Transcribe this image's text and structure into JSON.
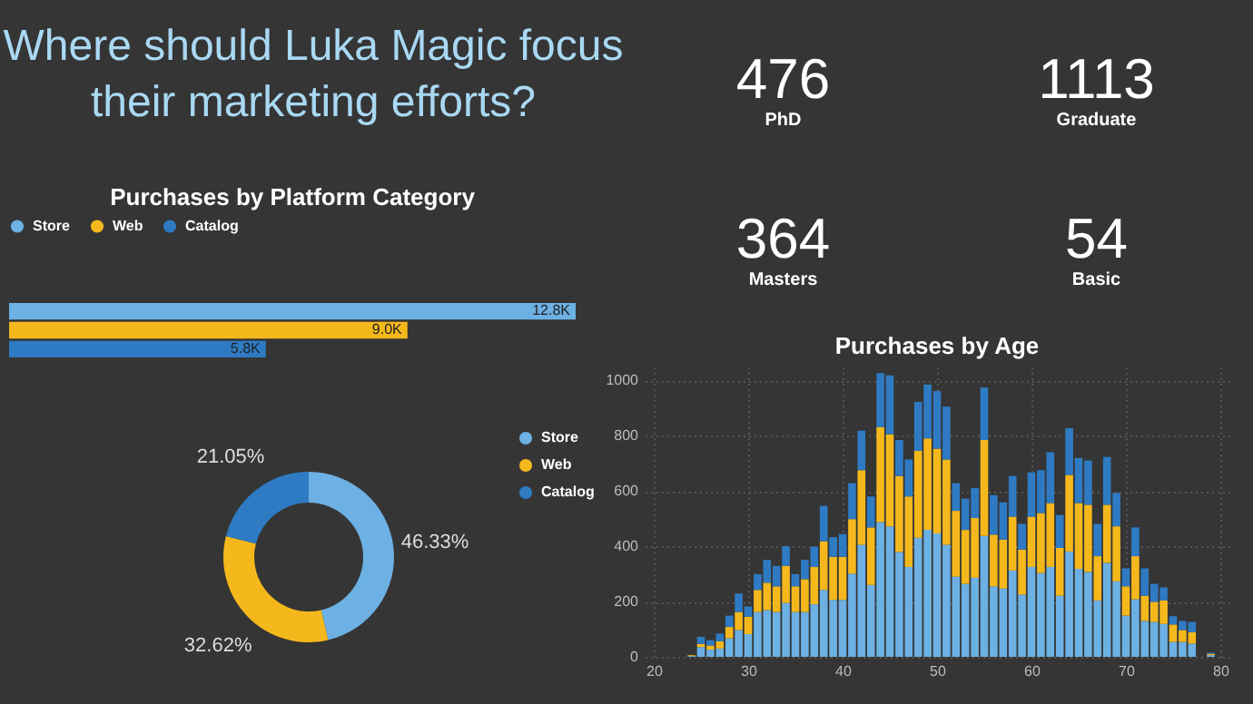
{
  "chart_data": [
    {
      "type": "other",
      "title": "Where should Luka Magic focus their marketing efforts?"
    },
    {
      "type": "other",
      "categories": [
        "PhD",
        "Graduate",
        "Masters",
        "Basic"
      ],
      "values": [
        476,
        1113,
        364,
        54
      ],
      "data_labels": true
    },
    {
      "type": "bar",
      "orientation": "horizontal",
      "title": "Purchases by Platform Category",
      "categories": [
        null
      ],
      "legend": "top",
      "series": [
        {
          "name": "Store",
          "color": "#6cb0e4",
          "values": [
            12800
          ],
          "value_labels": [
            "12.8K"
          ]
        },
        {
          "name": "Web",
          "color": "#f5b81c",
          "values": [
            9000
          ],
          "value_labels": [
            "9.0K"
          ]
        },
        {
          "name": "Catalog",
          "color": "#2e7bc4",
          "values": [
            5800
          ],
          "value_labels": [
            "5.8K"
          ]
        }
      ]
    },
    {
      "type": "donut",
      "categories": [
        "Store",
        "Web",
        "Catalog"
      ],
      "values": [
        46.33,
        32.62,
        21.05
      ],
      "colors": [
        "#6cb0e4",
        "#f5b81c",
        "#2e7bc4"
      ],
      "value_labels": [
        "46.33%",
        "32.62%",
        "21.05%"
      ],
      "legend": "right"
    },
    {
      "type": "bar",
      "title": "Purchases by Age",
      "stacked": true,
      "x": [
        24,
        25,
        26,
        27,
        28,
        29,
        30,
        31,
        32,
        33,
        34,
        35,
        36,
        37,
        38,
        39,
        40,
        41,
        42,
        43,
        44,
        45,
        46,
        47,
        48,
        49,
        50,
        51,
        52,
        53,
        54,
        55,
        56,
        57,
        58,
        59,
        60,
        61,
        62,
        63,
        64,
        65,
        66,
        67,
        68,
        69,
        70,
        71,
        72,
        73,
        74,
        75,
        76,
        77,
        79
      ],
      "series": [
        {
          "color": "#6cb0e4",
          "values": [
            3,
            35,
            26,
            30,
            67,
            97,
            82,
            162,
            169,
            162,
            195,
            162,
            162,
            190,
            242,
            206,
            206,
            301,
            405,
            260,
            487,
            472,
            379,
            325,
            431,
            459,
            446,
            405,
            290,
            264,
            286,
            437,
            255,
            247,
            312,
            225,
            325,
            303,
            325,
            221,
            381,
            318,
            307,
            204,
            340,
            273,
            149,
            208,
            130,
            126,
            119,
            54,
            54,
            48,
            6
          ]
        },
        {
          "color": "#f5b81c",
          "values": [
            3,
            12,
            15,
            26,
            41,
            65,
            63,
            80,
            99,
            93,
            134,
            93,
            119,
            135,
            176,
            156,
            156,
            197,
            270,
            208,
            344,
            333,
            275,
            255,
            314,
            331,
            307,
            309,
            238,
            195,
            216,
            347,
            187,
            177,
            195,
            163,
            182,
            217,
            231,
            173,
            277,
            238,
            243,
            160,
            210,
            199,
            106,
            156,
            91,
            73,
            85,
            63,
            43,
            41,
            5
          ]
        },
        {
          "color": "#2e7bc4",
          "values": [
            0,
            25,
            19,
            28,
            41,
            67,
            37,
            57,
            83,
            74,
            71,
            44,
            70,
            73,
            128,
            71,
            82,
            130,
            143,
            112,
            195,
            213,
            130,
            134,
            177,
            195,
            208,
            191,
            100,
            113,
            109,
            190,
            143,
            135,
            147,
            93,
            160,
            155,
            184,
            119,
            169,
            163,
            160,
            117,
            173,
            121,
            65,
            104,
            99,
            65,
            47,
            30,
            33,
            37,
            4
          ]
        }
      ],
      "xlim": [
        20,
        80
      ],
      "xticks": [
        20,
        30,
        40,
        50,
        60,
        70,
        80
      ],
      "ylim": [
        0,
        1050
      ],
      "yticks": [
        0,
        200,
        400,
        600,
        800,
        1000
      ],
      "grid": true
    }
  ]
}
